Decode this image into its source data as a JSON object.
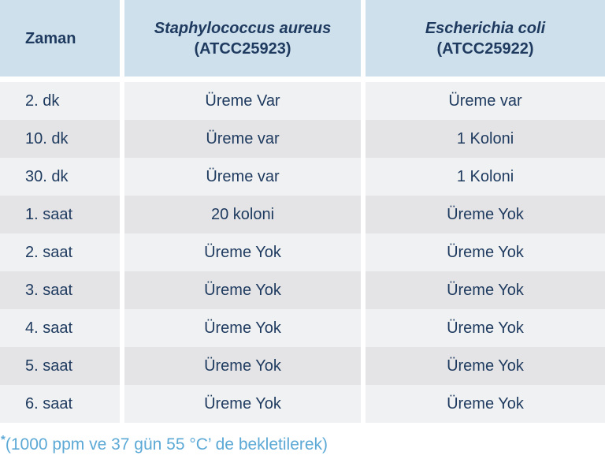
{
  "colors": {
    "header_bg": "#cfe0ed",
    "row_dark": "#e4e4e6",
    "row_light": "#f0f1f2",
    "text_navy": "#1e3a5f",
    "footnote_blue": "#5ca9d6",
    "page_bg": "#ffffff"
  },
  "table": {
    "columns": [
      {
        "label": "Zaman"
      },
      {
        "species": "Staphylococcus aureus",
        "strain": "(ATCC25923)"
      },
      {
        "species": "Escherichia coli",
        "strain": "(ATCC25922)"
      }
    ],
    "rows": [
      [
        "2. dk",
        "Üreme Var",
        "Üreme var"
      ],
      [
        "10. dk",
        "Üreme var",
        "1 Koloni"
      ],
      [
        "30. dk",
        "Üreme var",
        "1 Koloni"
      ],
      [
        "1. saat",
        "20 koloni",
        "Üreme Yok"
      ],
      [
        "2. saat",
        "Üreme Yok",
        "Üreme Yok"
      ],
      [
        "3. saat",
        "Üreme Yok",
        "Üreme Yok"
      ],
      [
        "4. saat",
        "Üreme Yok",
        "Üreme Yok"
      ],
      [
        "5. saat",
        "Üreme Yok",
        "Üreme Yok"
      ],
      [
        "6. saat",
        "Üreme Yok",
        "Üreme Yok"
      ]
    ]
  },
  "footnote": {
    "marker": "*",
    "text": "(1000 ppm ve 37 gün 55 °C’ de bekletilerek)"
  }
}
